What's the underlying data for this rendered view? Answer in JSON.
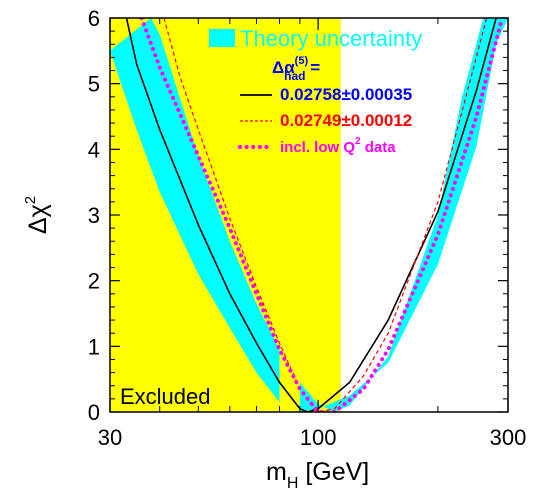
{
  "chart_data": {
    "type": "line",
    "x_scale": "log",
    "xlim": [
      30,
      300
    ],
    "ylim": [
      0,
      6
    ],
    "x_ticks": [
      "30",
      "100",
      "300"
    ],
    "y_ticks": [
      "0",
      "1",
      "2",
      "3",
      "4",
      "5",
      "6"
    ],
    "xlabel": {
      "main": "m",
      "sub": "H",
      "rest": " [GeV]"
    },
    "ylabel": {
      "main": "Δχ",
      "sup": "2"
    },
    "excluded_region": {
      "x_range": [
        30,
        114
      ],
      "label": "Excluded",
      "color": "#ffff00"
    },
    "theory_band": {
      "name": "Theory uncertainty",
      "color": "#00ffff",
      "center_mass": 84,
      "lower_edge": [
        [
          30,
          5.5
        ],
        [
          35,
          4.3
        ],
        [
          40,
          3.35
        ],
        [
          50,
          2.1
        ],
        [
          60,
          1.28
        ],
        [
          70,
          0.6
        ],
        [
          80,
          0.15
        ],
        [
          90,
          0.0
        ],
        [
          100,
          0.05
        ],
        [
          120,
          0.25
        ],
        [
          150,
          0.75
        ],
        [
          200,
          2.25
        ],
        [
          250,
          4.05
        ],
        [
          280,
          5.6
        ],
        [
          300,
          6.0
        ]
      ],
      "upper_edge": [
        [
          38,
          6.0
        ],
        [
          40,
          5.75
        ],
        [
          50,
          3.9
        ],
        [
          60,
          2.6
        ],
        [
          70,
          1.65
        ],
        [
          80,
          0.95
        ],
        [
          90,
          0.45
        ],
        [
          100,
          0.12
        ],
        [
          110,
          0.0
        ],
        [
          120,
          0.1
        ],
        [
          150,
          0.85
        ],
        [
          200,
          3.0
        ],
        [
          230,
          4.8
        ],
        [
          260,
          6.0
        ]
      ]
    },
    "series": [
      {
        "color": "#000000",
        "style": "solid",
        "points": [
          [
            33,
            6.0
          ],
          [
            35,
            5.3
          ],
          [
            40,
            4.3
          ],
          [
            50,
            2.85
          ],
          [
            60,
            1.8
          ],
          [
            70,
            1.05
          ],
          [
            80,
            0.45
          ],
          [
            90,
            0.05
          ],
          [
            94,
            0.0
          ],
          [
            100,
            0.05
          ],
          [
            120,
            0.45
          ],
          [
            150,
            1.4
          ],
          [
            200,
            3.05
          ],
          [
            250,
            4.9
          ],
          [
            280,
            6.0
          ]
        ]
      },
      {
        "color": "#ff0000",
        "style": "dashed",
        "points": [
          [
            41,
            6.0
          ],
          [
            45,
            5.1
          ],
          [
            50,
            4.3
          ],
          [
            60,
            2.95
          ],
          [
            70,
            1.9
          ],
          [
            80,
            1.05
          ],
          [
            90,
            0.35
          ],
          [
            100,
            0.0
          ],
          [
            110,
            0.05
          ],
          [
            130,
            0.55
          ],
          [
            150,
            1.2
          ],
          [
            200,
            3.2
          ],
          [
            240,
            5.0
          ],
          [
            265,
            6.0
          ]
        ]
      },
      {
        "color": "#ff00ff",
        "style": "dotted",
        "points": [
          [
            36,
            6.0
          ],
          [
            40,
            5.25
          ],
          [
            50,
            3.9
          ],
          [
            60,
            2.8
          ],
          [
            70,
            1.8
          ],
          [
            80,
            0.95
          ],
          [
            90,
            0.35
          ],
          [
            100,
            0.0
          ],
          [
            110,
            0.0
          ],
          [
            130,
            0.35
          ],
          [
            150,
            0.95
          ],
          [
            200,
            2.7
          ],
          [
            250,
            4.5
          ],
          [
            290,
            6.0
          ]
        ]
      }
    ],
    "legend": {
      "band_label": "Theory uncertainty",
      "header": {
        "main": "Δα",
        "sup": "(5)",
        "sub": "had",
        "rest": " ="
      },
      "entries": [
        {
          "label": "0.02758±0.00035",
          "color": "#0000ff",
          "line_color": "#000000",
          "style": "solid"
        },
        {
          "label": "0.02749±0.00012",
          "color": "#ff0000",
          "line_color": "#ff0000",
          "style": "dashed"
        },
        {
          "label": "incl. low Q",
          "sup": "2",
          "rest": " data",
          "color": "#ff00ff",
          "line_color": "#ff00ff",
          "style": "dotted"
        }
      ]
    }
  }
}
